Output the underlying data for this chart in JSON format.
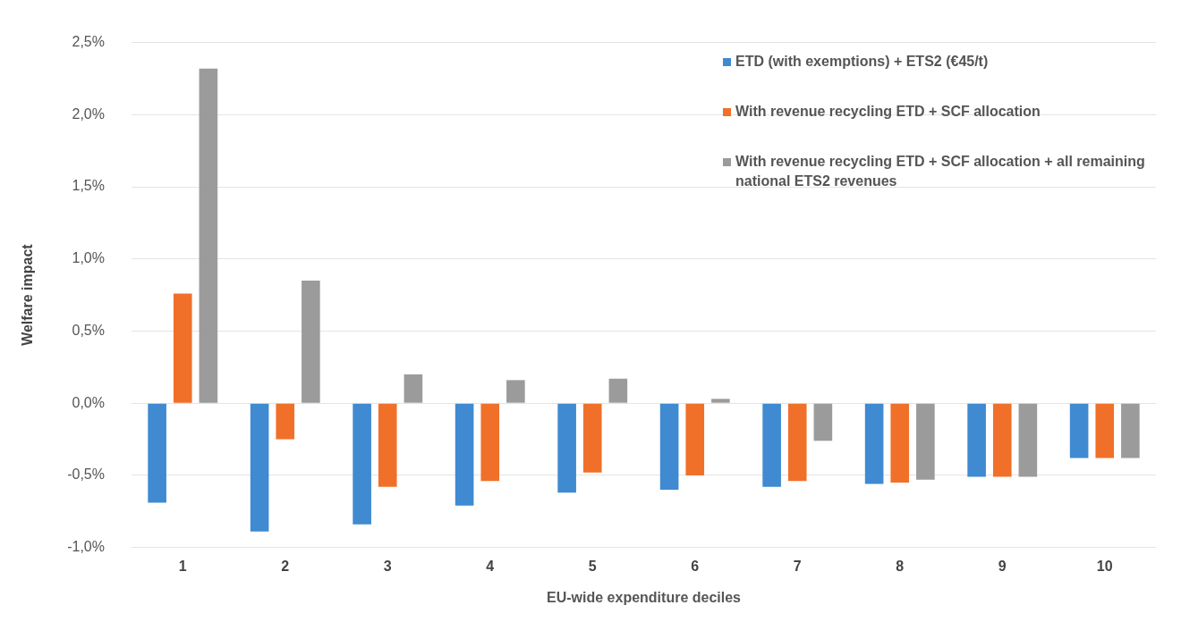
{
  "chart_data": {
    "type": "bar",
    "xlabel": "EU-wide expenditure deciles",
    "ylabel": "Welfare impact",
    "categories": [
      "1",
      "2",
      "3",
      "4",
      "5",
      "6",
      "7",
      "8",
      "9",
      "10"
    ],
    "series": [
      {
        "name": "ETD (with exemptions) + ETS2 (€45/t)",
        "color": "#3f8ad0",
        "values": [
          -0.69,
          -0.89,
          -0.84,
          -0.71,
          -0.62,
          -0.6,
          -0.58,
          -0.56,
          -0.51,
          -0.38
        ]
      },
      {
        "name": "With revenue recycling ETD + SCF allocation",
        "color": "#f0702a",
        "values": [
          0.76,
          -0.25,
          -0.58,
          -0.54,
          -0.48,
          -0.5,
          -0.54,
          -0.55,
          -0.51,
          -0.38
        ]
      },
      {
        "name": "With revenue recycling ETD + SCF allocation + all remaining national ETS2 revenues",
        "color": "#9b9b9b",
        "values": [
          2.32,
          0.85,
          0.2,
          0.16,
          0.17,
          0.03,
          -0.26,
          -0.53,
          -0.51,
          -0.38
        ]
      }
    ],
    "ylim": [
      -1,
      2.5
    ],
    "yticks": [
      {
        "value": -1,
        "label": "-1,0%"
      },
      {
        "value": -0.5,
        "label": "-0,5%"
      },
      {
        "value": 0,
        "label": "0,0%"
      },
      {
        "value": 0.5,
        "label": "0,5%"
      },
      {
        "value": 1,
        "label": "1,0%"
      },
      {
        "value": 1.5,
        "label": "1,5%"
      },
      {
        "value": 2,
        "label": "2,0%"
      },
      {
        "value": 2.5,
        "label": "2,5%"
      }
    ],
    "grid": "y",
    "legend": "top right"
  }
}
